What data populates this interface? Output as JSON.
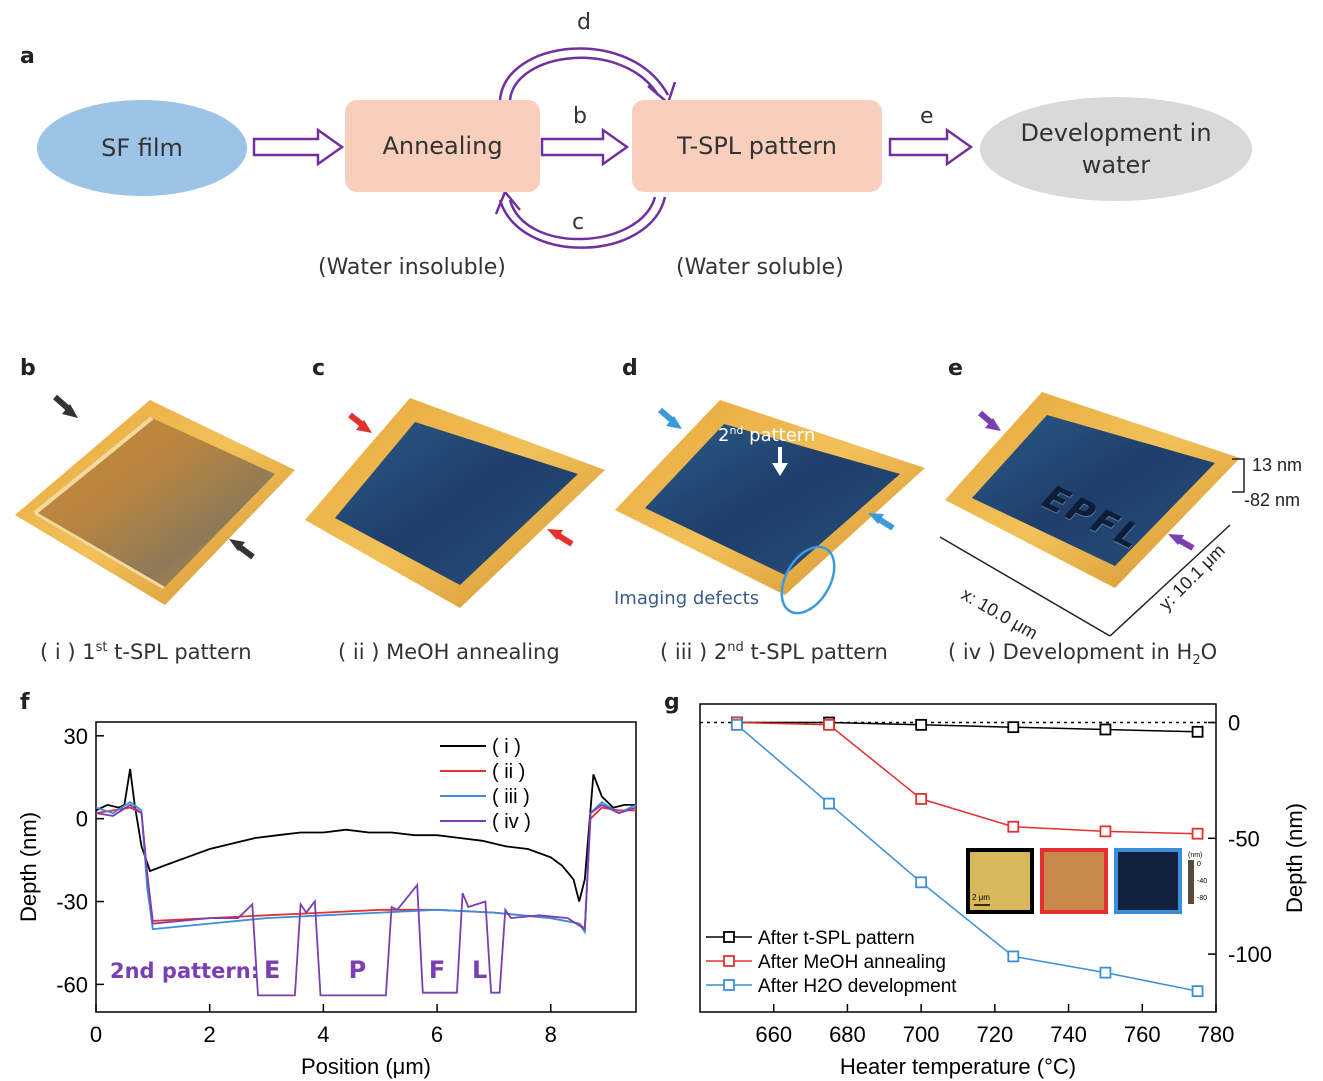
{
  "panel_labels": {
    "a": "a",
    "b": "b",
    "c": "c",
    "d": "d",
    "e": "e",
    "f": "f",
    "g": "g"
  },
  "flow": {
    "nodes": {
      "sf_film": "SF film",
      "annealing": "Annealing",
      "tspl": "T-SPL pattern",
      "development_l1": "Development in",
      "development_l2": "water"
    },
    "edge_labels": {
      "b": "b",
      "c": "c",
      "d": "d",
      "e": "e"
    },
    "notes": {
      "insoluble": "(Water insoluble)",
      "soluble": "(Water soluble)"
    },
    "colors": {
      "sf_film": "#9dc3e6",
      "box": "#f8cfbd",
      "development": "#d9d9d9",
      "arrow": "#7030a0"
    }
  },
  "afm": {
    "captions": [
      {
        "pre": "( i ) 1",
        "sup": "st",
        "post": " t-SPL pattern"
      },
      {
        "pre": "( ii ) MeOH annealing",
        "sup": "",
        "post": ""
      },
      {
        "pre": "( iii ) 2",
        "sup": "nd",
        "post": " t-SPL pattern"
      },
      {
        "pre": "( iv ) Development in H",
        "sub": "2",
        "post": "O"
      }
    ],
    "annotations": {
      "second_pattern": "2",
      "second_pattern_sup": "nd",
      "second_pattern_post": " pattern",
      "imaging_defects": "Imaging defects",
      "epfl": "EPFL"
    },
    "scale": {
      "top": "13 nm",
      "bottom": "-82 nm",
      "x_axis": "x: 10.0 μm",
      "y_axis": "y: 10.1 μm"
    },
    "arrow_colors": [
      "#333333",
      "#e53030",
      "#3b9ad9",
      "#7a3fb0"
    ]
  },
  "chart_data": [
    {
      "type": "line",
      "panel": "f",
      "xlabel": "Position (μm)",
      "ylabel": "Depth (nm)",
      "xlim": [
        0,
        9.5
      ],
      "ylim": [
        -70,
        35
      ],
      "xticks": [
        0,
        2,
        4,
        6,
        8
      ],
      "yticks": [
        30,
        0,
        -30,
        -60
      ],
      "legend_position": "top-right",
      "annotation": "2nd pattern:",
      "letters": [
        "E",
        "P",
        "F",
        "L"
      ],
      "series": [
        {
          "name": "( i )",
          "color": "#000000",
          "x": [
            0,
            0.2,
            0.4,
            0.5,
            0.6,
            0.68,
            0.8,
            0.95,
            1.2,
            1.6,
            2,
            2.4,
            2.8,
            3.2,
            3.6,
            4,
            4.4,
            4.8,
            5.2,
            5.6,
            6,
            6.4,
            6.8,
            7.2,
            7.6,
            8,
            8.2,
            8.4,
            8.5,
            8.6,
            8.75,
            8.9,
            9.1,
            9.3,
            9.5
          ],
          "y": [
            3,
            5,
            4,
            5,
            18,
            5,
            -10,
            -19,
            -17,
            -14,
            -11,
            -9,
            -7,
            -6,
            -5,
            -5,
            -4,
            -5,
            -5,
            -6,
            -6,
            -7,
            -8,
            -10,
            -11,
            -14,
            -17,
            -22,
            -30,
            -22,
            16,
            8,
            4,
            5,
            5
          ]
        },
        {
          "name": "( ii )",
          "color": "#e53030",
          "x": [
            0,
            0.3,
            0.6,
            0.8,
            0.9,
            1.0,
            2,
            3,
            4,
            5,
            6,
            7,
            8,
            8.5,
            8.6,
            8.7,
            8.9,
            9.2,
            9.5
          ],
          "y": [
            2,
            3,
            4,
            2,
            -20,
            -37,
            -36,
            -35,
            -34,
            -33,
            -33,
            -34,
            -36,
            -38,
            -40,
            0,
            4,
            3,
            3
          ]
        },
        {
          "name": "( iii )",
          "color": "#3b8fd6",
          "x": [
            0,
            0.3,
            0.6,
            0.8,
            0.9,
            1.0,
            2,
            3,
            4,
            5,
            6,
            7,
            8,
            8.5,
            8.6,
            8.7,
            8.9,
            9.2,
            9.5
          ],
          "y": [
            4,
            2,
            6,
            3,
            -25,
            -40,
            -38,
            -36,
            -35,
            -34,
            -33,
            -34,
            -36,
            -38,
            -41,
            2,
            6,
            2,
            5
          ]
        },
        {
          "name": "( iv )",
          "color": "#7a3fb0",
          "x": [
            0,
            0.3,
            0.6,
            0.8,
            0.9,
            1.0,
            1.5,
            2,
            2.5,
            2.75,
            2.85,
            3.5,
            3.6,
            3.7,
            3.85,
            3.95,
            5.1,
            5.2,
            5.3,
            5.65,
            5.75,
            6.35,
            6.45,
            6.55,
            6.85,
            6.95,
            7.1,
            7.2,
            7.3,
            7.8,
            8.3,
            8.6,
            8.7,
            8.9,
            9.2,
            9.5
          ],
          "y": [
            2,
            1,
            5,
            2,
            -20,
            -38,
            -37,
            -36,
            -36,
            -31,
            -64,
            -64,
            -31,
            -34,
            -30,
            -64,
            -64,
            -32,
            -33,
            -24,
            -63,
            -63,
            -27,
            -32,
            -30,
            -63,
            -63,
            -33,
            -36,
            -35,
            -36,
            -40,
            2,
            5,
            2,
            4
          ]
        }
      ]
    },
    {
      "type": "line",
      "panel": "g",
      "xlabel": "Heater temperature (°C)",
      "ylabel": "Depth (nm)",
      "xlim": [
        640,
        780
      ],
      "ylim": [
        -125,
        8
      ],
      "xticks": [
        660,
        680,
        700,
        720,
        740,
        760,
        780
      ],
      "yticks": [
        0,
        -50,
        -100
      ],
      "y_axis_side": "right",
      "reference_line": 0,
      "legend_position": "bottom-left",
      "inset_colorbar": {
        "unit": "(nm)",
        "ticks": [
          "0",
          "-40",
          "-80"
        ],
        "scalebar": "2 μm",
        "frame_colors": [
          "#000000",
          "#e53030",
          "#3b8fd6"
        ]
      },
      "categories": [
        650,
        675,
        700,
        725,
        750,
        775
      ],
      "series": [
        {
          "name": "After t-SPL pattern",
          "color": "#000000",
          "values": [
            0,
            0,
            -1,
            -2,
            -3,
            -4
          ]
        },
        {
          "name": "After MeOH annealing",
          "color": "#e53030",
          "values": [
            0,
            -1,
            -33,
            -45,
            -47,
            -48
          ]
        },
        {
          "name": "After H2O development",
          "color": "#3b8fd6",
          "values": [
            -1,
            -35,
            -69,
            -101,
            -108,
            -116
          ]
        }
      ]
    }
  ]
}
